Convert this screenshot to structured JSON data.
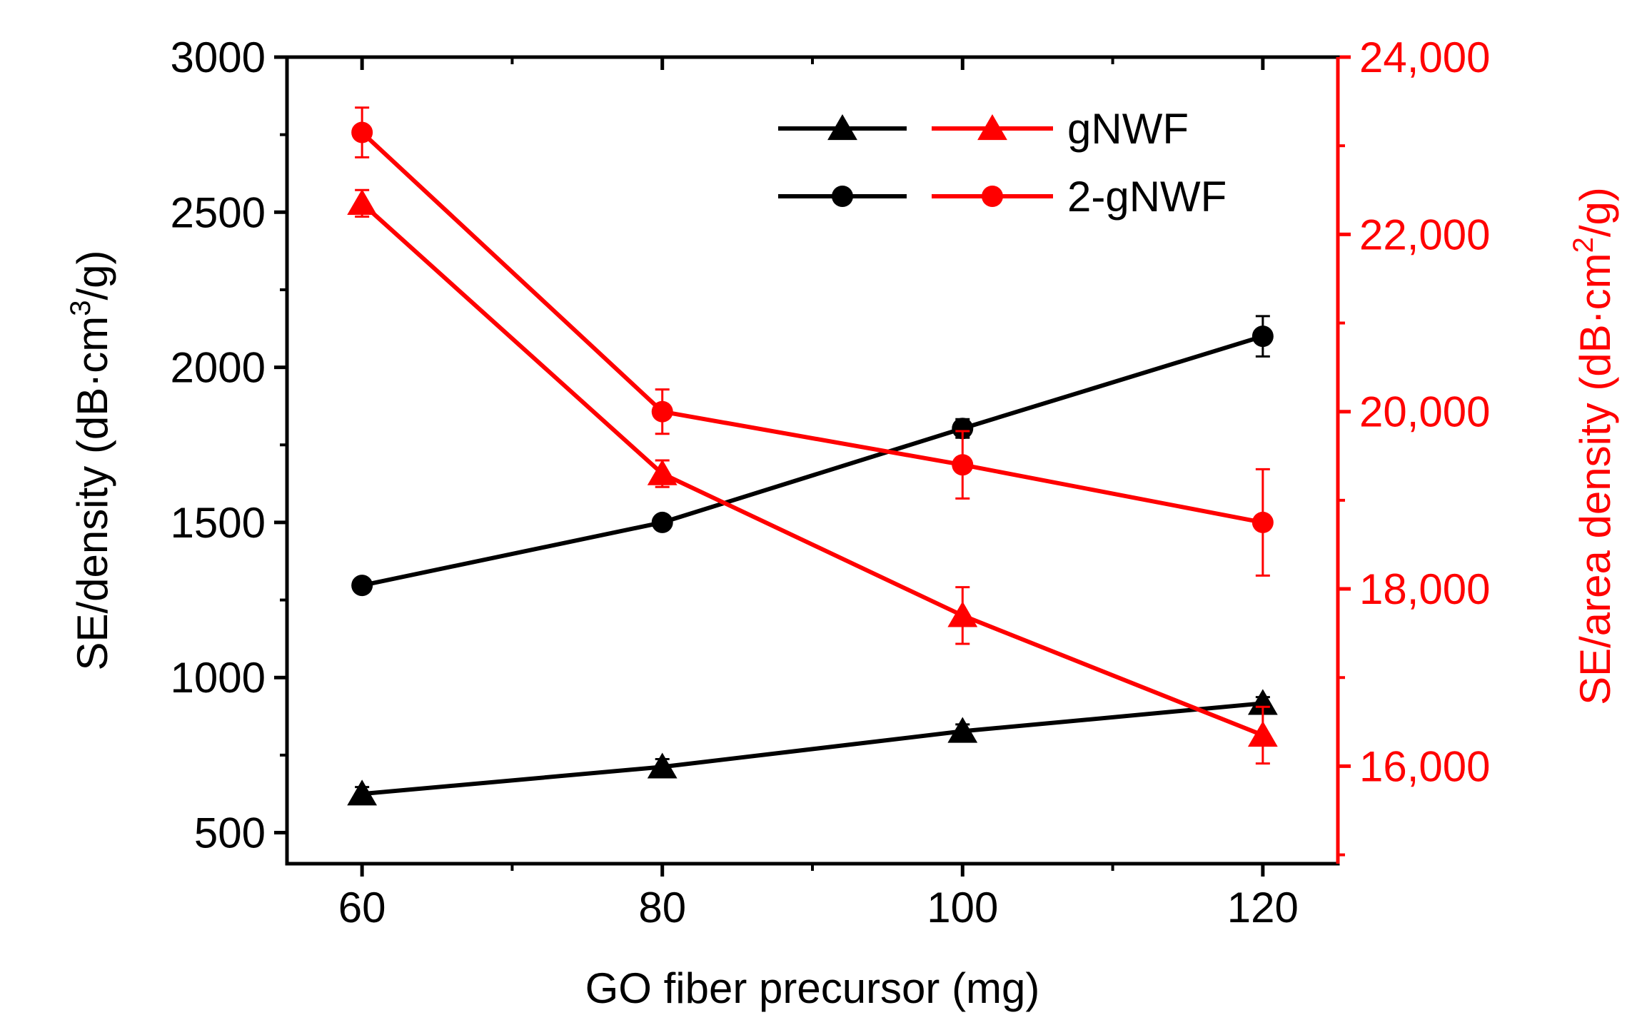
{
  "chart_data": {
    "type": "line",
    "x_title": "GO fiber precursor (mg)",
    "y_left_title": {
      "main": "SE/density (dB·cm",
      "sup": "3",
      "end": "/g)"
    },
    "y_right_title": {
      "main": "SE/area density (dB·cm",
      "sup": "2",
      "end": "/g)"
    },
    "x_range": [
      55,
      125
    ],
    "y_left_range": [
      400,
      3000
    ],
    "y_right_range": [
      14900,
      24000
    ],
    "x_ticks": [
      60,
      80,
      100,
      120
    ],
    "x_minor_ticks": [
      70,
      90,
      110
    ],
    "y_left_ticks": [
      500,
      1000,
      1500,
      2000,
      2500,
      3000
    ],
    "y_left_tick_labels": [
      "500",
      "1000",
      "1500",
      "2000",
      "2500",
      "3000"
    ],
    "y_right_ticks": [
      16000,
      18000,
      20000,
      22000,
      24000
    ],
    "y_right_tick_labels": [
      "16,000",
      "18,000",
      "20,000",
      "22,000",
      "24,000"
    ],
    "y_right_minor_ticks": [
      15000,
      17000,
      19000,
      21000,
      23000
    ],
    "x_tick_labels": [
      "60",
      "80",
      "100",
      "120"
    ],
    "colors": {
      "left": "#000000",
      "right": "#ff0000"
    },
    "legend": [
      {
        "label": "gNWF",
        "marker": "triangle"
      },
      {
        "label": "2-gNWF",
        "marker": "circle"
      }
    ],
    "series": [
      {
        "name": "gNWF (SE/density)",
        "axis": "left",
        "marker": "triangle",
        "color": "#000000",
        "x": [
          60,
          80,
          100,
          120
        ],
        "y": [
          625,
          712,
          827,
          917
        ],
        "err": [
          22,
          25,
          22,
          20
        ]
      },
      {
        "name": "2-gNWF (SE/density)",
        "axis": "left",
        "marker": "circle",
        "color": "#000000",
        "x": [
          60,
          80,
          100,
          120
        ],
        "y": [
          1297,
          1500,
          1803,
          2100
        ],
        "err": [
          15,
          18,
          30,
          65
        ]
      },
      {
        "name": "gNWF (SE/area density)",
        "axis": "right",
        "marker": "triangle",
        "color": "#ff0000",
        "x": [
          60,
          80,
          100,
          120
        ],
        "y": [
          22350,
          19300,
          17700,
          16350
        ],
        "err": [
          150,
          150,
          320,
          320
        ]
      },
      {
        "name": "2-gNWF (SE/area density)",
        "axis": "right",
        "marker": "circle",
        "color": "#ff0000",
        "x": [
          60,
          80,
          100,
          120
        ],
        "y": [
          23150,
          20000,
          19400,
          18750
        ],
        "err": [
          280,
          250,
          380,
          600
        ]
      }
    ]
  }
}
